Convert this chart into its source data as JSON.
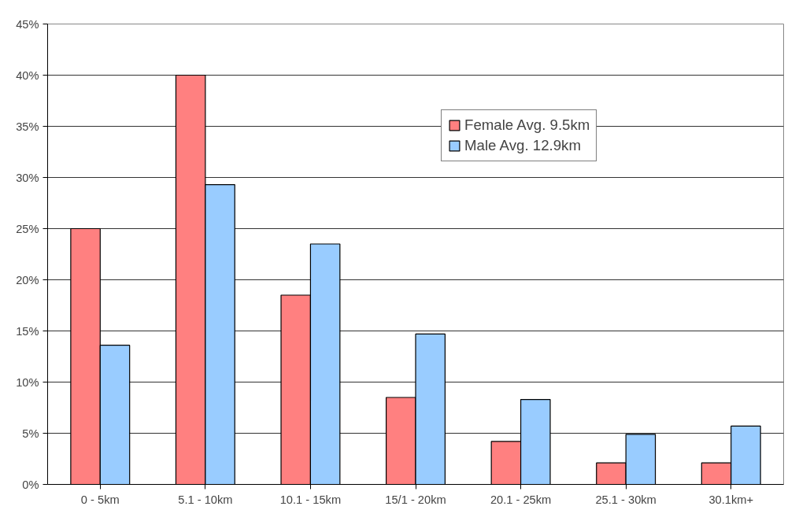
{
  "chart_data": {
    "type": "bar",
    "categories": [
      "0 - 5km",
      "5.1 - 10km",
      "10.1 - 15km",
      "15/1 - 20km",
      "20.1 - 25km",
      "25.1 - 30km",
      "30.1km+"
    ],
    "series": [
      {
        "name": "Female Avg. 9.5km",
        "color": "#ff8080",
        "values": [
          25,
          40,
          18.5,
          8.5,
          4.2,
          2.1,
          2.1
        ]
      },
      {
        "name": "Male Avg. 12.9km",
        "color": "#99ccff",
        "values": [
          13.6,
          29.3,
          23.5,
          14.7,
          8.3,
          4.9,
          5.7
        ]
      }
    ],
    "ylim": [
      0,
      45
    ],
    "yticks": [
      {
        "value": 0,
        "label": "0%"
      },
      {
        "value": 5,
        "label": "5%"
      },
      {
        "value": 10,
        "label": "10%"
      },
      {
        "value": 15,
        "label": "15%"
      },
      {
        "value": 20,
        "label": "20%"
      },
      {
        "value": 25,
        "label": "25%"
      },
      {
        "value": 30,
        "label": "30%"
      },
      {
        "value": 35,
        "label": "35%"
      },
      {
        "value": 40,
        "label": "40%"
      },
      {
        "value": 45,
        "label": "45%"
      }
    ],
    "grid": "y",
    "legend": "top"
  }
}
